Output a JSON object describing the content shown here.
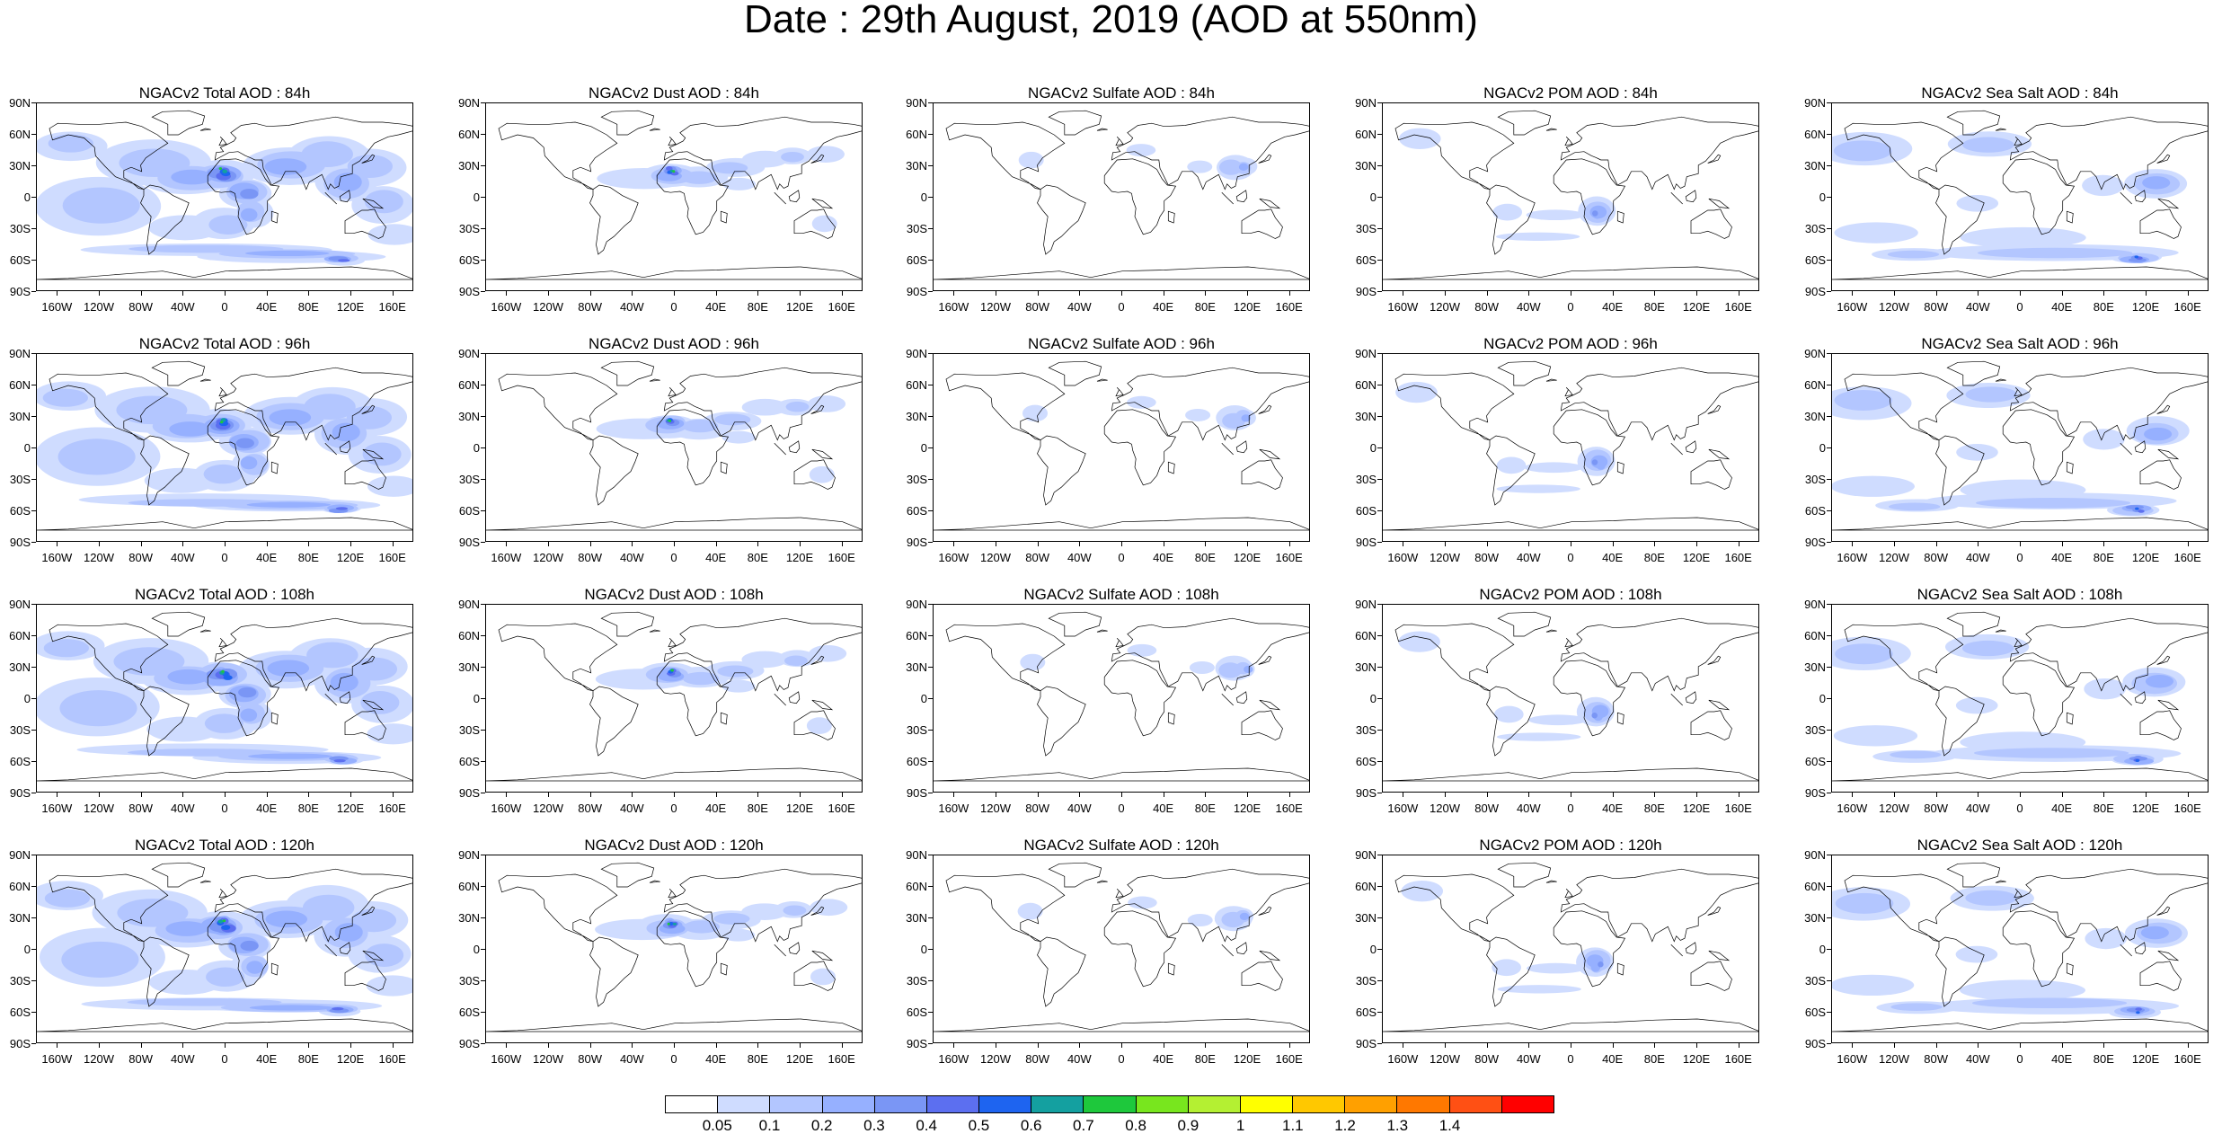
{
  "title": "Date : 29th August, 2019 (AOD at 550nm)",
  "lat_labels": [
    "90N",
    "60N",
    "30N",
    "0",
    "30S",
    "60S",
    "90S"
  ],
  "lon_labels": [
    "160W",
    "120W",
    "80W",
    "40W",
    "0",
    "40E",
    "80E",
    "120E",
    "160E"
  ],
  "colorbar": {
    "colors": [
      "#ffffff",
      "#cfdcff",
      "#b3c6ff",
      "#96b0ff",
      "#7a96f5",
      "#5c6ff0",
      "#1e64f0",
      "#14a0a0",
      "#1ec83c",
      "#78e61e",
      "#b4f032",
      "#ffff00",
      "#ffc800",
      "#ffa000",
      "#ff7800",
      "#ff5014",
      "#ff0000"
    ],
    "labels": [
      "0.05",
      "0.1",
      "0.2",
      "0.3",
      "0.4",
      "0.5",
      "0.6",
      "0.7",
      "0.8",
      "0.9",
      "1",
      "1.1",
      "1.2",
      "1.3",
      "1.4"
    ]
  },
  "panels": [
    {
      "title": "NGACv2 Total AOD : 84h",
      "variable": "total",
      "forecast_hour": 84
    },
    {
      "title": "NGACv2 Dust AOD : 84h",
      "variable": "dust",
      "forecast_hour": 84
    },
    {
      "title": "NGACv2 Sulfate AOD : 84h",
      "variable": "sulfate",
      "forecast_hour": 84
    },
    {
      "title": "NGACv2 POM AOD : 84h",
      "variable": "pom",
      "forecast_hour": 84
    },
    {
      "title": "NGACv2 Sea Salt AOD : 84h",
      "variable": "seasalt",
      "forecast_hour": 84
    },
    {
      "title": "NGACv2 Total AOD : 96h",
      "variable": "total",
      "forecast_hour": 96
    },
    {
      "title": "NGACv2 Dust AOD : 96h",
      "variable": "dust",
      "forecast_hour": 96
    },
    {
      "title": "NGACv2 Sulfate AOD : 96h",
      "variable": "sulfate",
      "forecast_hour": 96
    },
    {
      "title": "NGACv2 POM AOD : 96h",
      "variable": "pom",
      "forecast_hour": 96
    },
    {
      "title": "NGACv2 Sea Salt AOD : 96h",
      "variable": "seasalt",
      "forecast_hour": 96
    },
    {
      "title": "NGACv2 Total AOD : 108h",
      "variable": "total",
      "forecast_hour": 108
    },
    {
      "title": "NGACv2 Dust AOD : 108h",
      "variable": "dust",
      "forecast_hour": 108
    },
    {
      "title": "NGACv2 Sulfate AOD : 108h",
      "variable": "sulfate",
      "forecast_hour": 108
    },
    {
      "title": "NGACv2 POM AOD : 108h",
      "variable": "pom",
      "forecast_hour": 108
    },
    {
      "title": "NGACv2 Sea Salt AOD : 108h",
      "variable": "seasalt",
      "forecast_hour": 108
    },
    {
      "title": "NGACv2 Total AOD : 120h",
      "variable": "total",
      "forecast_hour": 120
    },
    {
      "title": "NGACv2 Dust AOD : 120h",
      "variable": "dust",
      "forecast_hour": 120
    },
    {
      "title": "NGACv2 Sulfate AOD : 120h",
      "variable": "sulfate",
      "forecast_hour": 120
    },
    {
      "title": "NGACv2 POM AOD : 120h",
      "variable": "pom",
      "forecast_hour": 120
    },
    {
      "title": "NGACv2 Sea Salt  AOD : 120h",
      "variable": "seasalt",
      "forecast_hour": 120
    }
  ]
}
